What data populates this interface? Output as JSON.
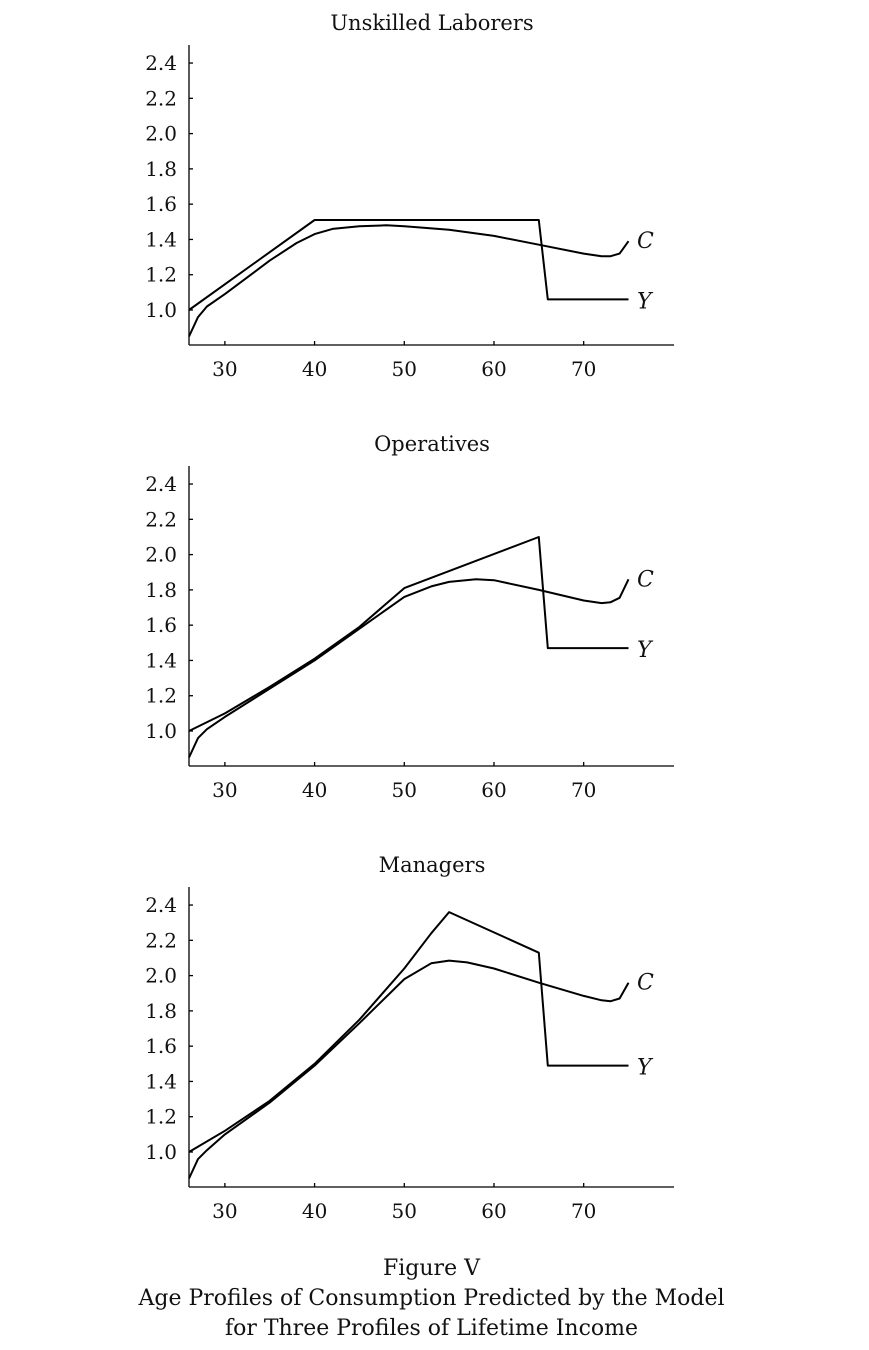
{
  "figure": {
    "label": "Figure V",
    "caption_line1": "Age Profiles of Consumption Predicted by the Model",
    "caption_line2": "for Three Profiles of Lifetime Income"
  },
  "chart_data": [
    {
      "type": "line",
      "title": "Unskilled Laborers",
      "xlabel": "",
      "ylabel": "",
      "xlim": [
        26,
        80
      ],
      "ylim": [
        0.8,
        2.5
      ],
      "xticks": [
        30,
        40,
        50,
        60,
        70
      ],
      "yticks": [
        "1.0",
        "1.2",
        "1.4",
        "1.6",
        "1.8",
        "2.0",
        "2.2",
        "2.4"
      ],
      "grid": false,
      "series": [
        {
          "name": "Y",
          "x": [
            26,
            40,
            65,
            66,
            75
          ],
          "values": [
            1.0,
            1.51,
            1.51,
            1.06,
            1.06
          ]
        },
        {
          "name": "C",
          "x": [
            26,
            27,
            28,
            30,
            35,
            38,
            40,
            42,
            45,
            48,
            50,
            55,
            60,
            65,
            70,
            72,
            73,
            74,
            75
          ],
          "values": [
            0.85,
            0.96,
            1.02,
            1.09,
            1.28,
            1.38,
            1.43,
            1.46,
            1.475,
            1.48,
            1.475,
            1.455,
            1.42,
            1.37,
            1.32,
            1.305,
            1.305,
            1.32,
            1.39
          ]
        }
      ],
      "annotations": [
        "C",
        "Y"
      ]
    },
    {
      "type": "line",
      "title": "Operatives",
      "xlabel": "",
      "ylabel": "",
      "xlim": [
        26,
        80
      ],
      "ylim": [
        0.8,
        2.5
      ],
      "xticks": [
        30,
        40,
        50,
        60,
        70
      ],
      "yticks": [
        "1.0",
        "1.2",
        "1.4",
        "1.6",
        "1.8",
        "2.0",
        "2.2",
        "2.4"
      ],
      "grid": false,
      "series": [
        {
          "name": "Y",
          "x": [
            26,
            30,
            35,
            40,
            45,
            50,
            65,
            66,
            75
          ],
          "values": [
            1.0,
            1.1,
            1.25,
            1.41,
            1.59,
            1.81,
            2.1,
            1.47,
            1.47
          ]
        },
        {
          "name": "C",
          "x": [
            26,
            27,
            28,
            30,
            35,
            40,
            45,
            50,
            53,
            55,
            58,
            60,
            65,
            70,
            72,
            73,
            74,
            75
          ],
          "values": [
            0.85,
            0.96,
            1.01,
            1.08,
            1.24,
            1.4,
            1.58,
            1.76,
            1.82,
            1.845,
            1.86,
            1.855,
            1.8,
            1.74,
            1.725,
            1.73,
            1.755,
            1.86
          ]
        }
      ],
      "annotations": [
        "C",
        "Y"
      ]
    },
    {
      "type": "line",
      "title": "Managers",
      "xlabel": "",
      "ylabel": "",
      "xlim": [
        26,
        80
      ],
      "ylim": [
        0.8,
        2.5
      ],
      "xticks": [
        30,
        40,
        50,
        60,
        70
      ],
      "yticks": [
        "1.0",
        "1.2",
        "1.4",
        "1.6",
        "1.8",
        "2.0",
        "2.2",
        "2.4"
      ],
      "grid": false,
      "series": [
        {
          "name": "Y",
          "x": [
            26,
            30,
            35,
            40,
            45,
            50,
            53,
            55,
            65,
            66,
            75
          ],
          "values": [
            1.0,
            1.12,
            1.29,
            1.5,
            1.75,
            2.04,
            2.24,
            2.36,
            2.13,
            1.49,
            1.49
          ]
        },
        {
          "name": "C",
          "x": [
            26,
            27,
            28,
            30,
            35,
            40,
            45,
            50,
            53,
            55,
            57,
            60,
            65,
            70,
            72,
            73,
            74,
            75
          ],
          "values": [
            0.85,
            0.96,
            1.01,
            1.1,
            1.28,
            1.49,
            1.73,
            1.98,
            2.07,
            2.085,
            2.075,
            2.04,
            1.96,
            1.885,
            1.86,
            1.855,
            1.87,
            1.96
          ]
        }
      ],
      "annotations": [
        "C",
        "Y"
      ]
    }
  ]
}
